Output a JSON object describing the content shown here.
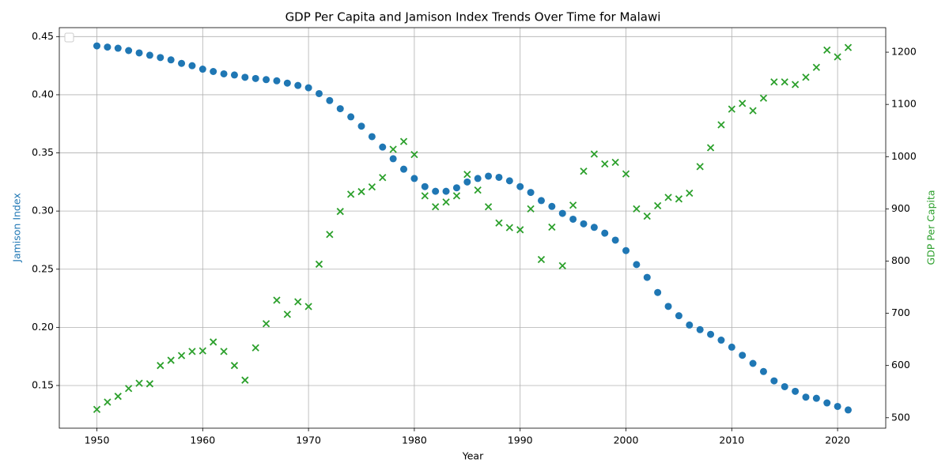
{
  "chart_data": {
    "type": "scatter",
    "title": "GDP Per Capita and Jamison Index Trends Over Time for Malawi",
    "xlabel": "Year",
    "ylabel": "Jamison Index",
    "y2label": "GDP Per Capita",
    "x": [
      1950,
      1951,
      1952,
      1953,
      1954,
      1955,
      1956,
      1957,
      1958,
      1959,
      1960,
      1961,
      1962,
      1963,
      1964,
      1965,
      1966,
      1967,
      1968,
      1969,
      1970,
      1971,
      1972,
      1973,
      1974,
      1975,
      1976,
      1977,
      1978,
      1979,
      1980,
      1981,
      1982,
      1983,
      1984,
      1985,
      1986,
      1987,
      1988,
      1989,
      1990,
      1991,
      1992,
      1993,
      1994,
      1995,
      1996,
      1997,
      1998,
      1999,
      2000,
      2001,
      2002,
      2003,
      2004,
      2005,
      2006,
      2007,
      2008,
      2009,
      2010,
      2011,
      2012,
      2013,
      2014,
      2015,
      2016,
      2017,
      2018,
      2019,
      2020,
      2021
    ],
    "series": [
      {
        "color": "#1f77b4",
        "marker": "o",
        "axis": "y",
        "values": [
          0.442,
          0.441,
          0.44,
          0.438,
          0.436,
          0.434,
          0.432,
          0.43,
          0.427,
          0.425,
          0.422,
          0.42,
          0.418,
          0.417,
          0.415,
          0.414,
          0.413,
          0.412,
          0.41,
          0.408,
          0.406,
          0.401,
          0.395,
          0.388,
          0.381,
          0.373,
          0.364,
          0.355,
          0.345,
          0.336,
          0.328,
          0.321,
          0.317,
          0.317,
          0.32,
          0.325,
          0.328,
          0.33,
          0.329,
          0.326,
          0.321,
          0.316,
          0.309,
          0.304,
          0.298,
          0.293,
          0.289,
          0.286,
          0.281,
          0.275,
          0.266,
          0.254,
          0.243,
          0.23,
          0.218,
          0.21,
          0.202,
          0.198,
          0.194,
          0.189,
          0.183,
          0.176,
          0.169,
          0.162,
          0.154,
          0.149,
          0.145,
          0.14,
          0.139,
          0.135,
          0.132,
          0.129
        ]
      },
      {
        "color": "#2ca02c",
        "marker": "x",
        "axis": "y2",
        "values": [
          516,
          530,
          541,
          556,
          566,
          565,
          600,
          610,
          619,
          627,
          628,
          645,
          627,
          600,
          572,
          634,
          680,
          725,
          698,
          722,
          713,
          794,
          851,
          895,
          928,
          933,
          942,
          960,
          1014,
          1029,
          1004,
          925,
          904,
          913,
          925,
          966,
          936,
          904,
          873,
          864,
          860,
          900,
          803,
          865,
          791,
          907,
          972,
          1005,
          986,
          989,
          967,
          900,
          886,
          906,
          922,
          919,
          930,
          981,
          1017,
          1061,
          1091,
          1102,
          1088,
          1112,
          1143,
          1143,
          1138,
          1152,
          1171,
          1204,
          1191,
          1209
        ]
      }
    ],
    "xlim": [
      1946.45,
      2024.55
    ],
    "xticks": [
      1950,
      1960,
      1970,
      1980,
      1990,
      2000,
      2010,
      2020
    ],
    "ylim": [
      0.1133,
      0.4577
    ],
    "yticks": [
      0.15,
      {
        "value": 0.2,
        "label": "0.20"
      },
      0.25,
      {
        "value": 0.3,
        "label": "0.30"
      },
      0.35,
      {
        "value": 0.4,
        "label": "0.40"
      },
      0.45
    ],
    "y2lim": [
      480,
      1247
    ],
    "y2ticks": [
      500,
      600,
      700,
      800,
      900,
      1000,
      1100,
      1200
    ],
    "grid": true
  }
}
